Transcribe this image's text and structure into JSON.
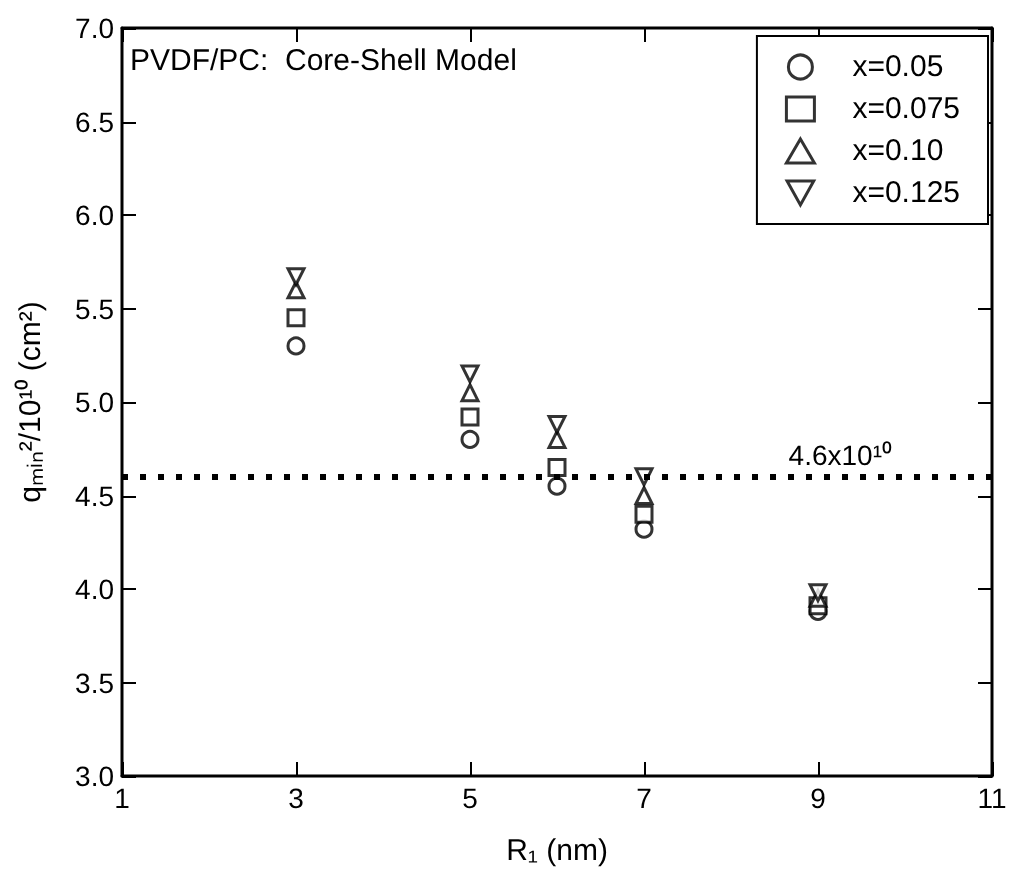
{
  "chart_data": {
    "type": "scatter",
    "title": "PVDF/PC:  Core-Shell Model",
    "xlabel": "R₁ (nm)",
    "ylabel": "qₘᵢₙ²/10¹⁰ (cm²)",
    "x": [
      3,
      5,
      6,
      7,
      9
    ],
    "series": [
      {
        "name": "x=0.05",
        "color": "#000000",
        "marker": "circle",
        "values": [
          5.3,
          4.8,
          4.55,
          4.32,
          3.88
        ]
      },
      {
        "name": "x=0.075",
        "color": "#000000",
        "marker": "square",
        "values": [
          5.45,
          4.92,
          4.65,
          4.4,
          3.91
        ]
      },
      {
        "name": "x=0.10",
        "color": "#000000",
        "marker": "triangle",
        "values": [
          5.6,
          5.05,
          4.8,
          4.5,
          3.95
        ]
      },
      {
        "name": "x=0.125",
        "color": "#000000",
        "marker": "triangle-down",
        "values": [
          5.67,
          5.15,
          4.88,
          4.6,
          3.98
        ]
      }
    ],
    "xlim": [
      1,
      11
    ],
    "xticks": [
      1,
      3,
      5,
      7,
      9,
      11
    ],
    "ylim": [
      3.0,
      7.0
    ],
    "yticks": [
      {
        "value": 3,
        "label": "3.0"
      },
      {
        "value": 3.5,
        "label": "3.5"
      },
      {
        "value": 4,
        "label": "4.0"
      },
      {
        "value": 4.5,
        "label": "4.5"
      },
      {
        "value": 5,
        "label": "5.0"
      },
      {
        "value": 5.5,
        "label": "5.5"
      },
      {
        "value": 6,
        "label": "6.0"
      },
      {
        "value": 6.5,
        "label": "6.5"
      },
      {
        "value": 7,
        "label": "7.0"
      }
    ],
    "ref_lines": [
      {
        "axis": "y",
        "value": 4.6,
        "label": "4.6x10¹⁰",
        "line_style": "dotted",
        "color": "#000000"
      }
    ],
    "legend": "top right",
    "grid": false
  }
}
